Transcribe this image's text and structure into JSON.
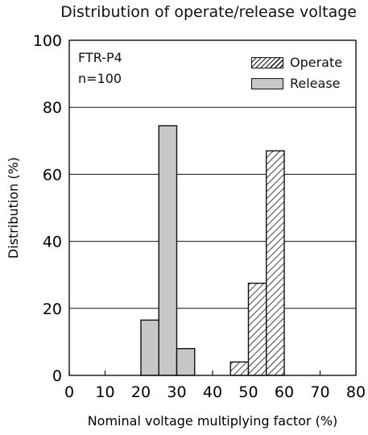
{
  "chart_data": {
    "type": "bar",
    "title": "Distribution of operate/release voltage",
    "xlabel": "Nominal voltage multiplying factor (%)",
    "ylabel": "Distribution (%)",
    "xlim": [
      0,
      80
    ],
    "ylim": [
      0,
      100
    ],
    "xticks": [
      "0",
      "10",
      "20",
      "30",
      "40",
      "50",
      "60",
      "70",
      "80"
    ],
    "yticks": [
      "0",
      "20",
      "40",
      "60",
      "80",
      "100"
    ],
    "grid": "horizontal",
    "legend_position": "top-right",
    "annotations": [
      "FTR-P4",
      "n=100"
    ],
    "series": [
      {
        "name": "Operate",
        "pattern": "hatch",
        "bins": [
          [
            45,
            50
          ],
          [
            50,
            55
          ],
          [
            55,
            60
          ]
        ],
        "values": [
          4,
          27.5,
          67
        ]
      },
      {
        "name": "Release",
        "color": "#c7c7c7",
        "bins": [
          [
            20,
            25
          ],
          [
            25,
            30
          ],
          [
            30,
            35
          ]
        ],
        "values": [
          16.5,
          74.5,
          8
        ]
      }
    ]
  }
}
